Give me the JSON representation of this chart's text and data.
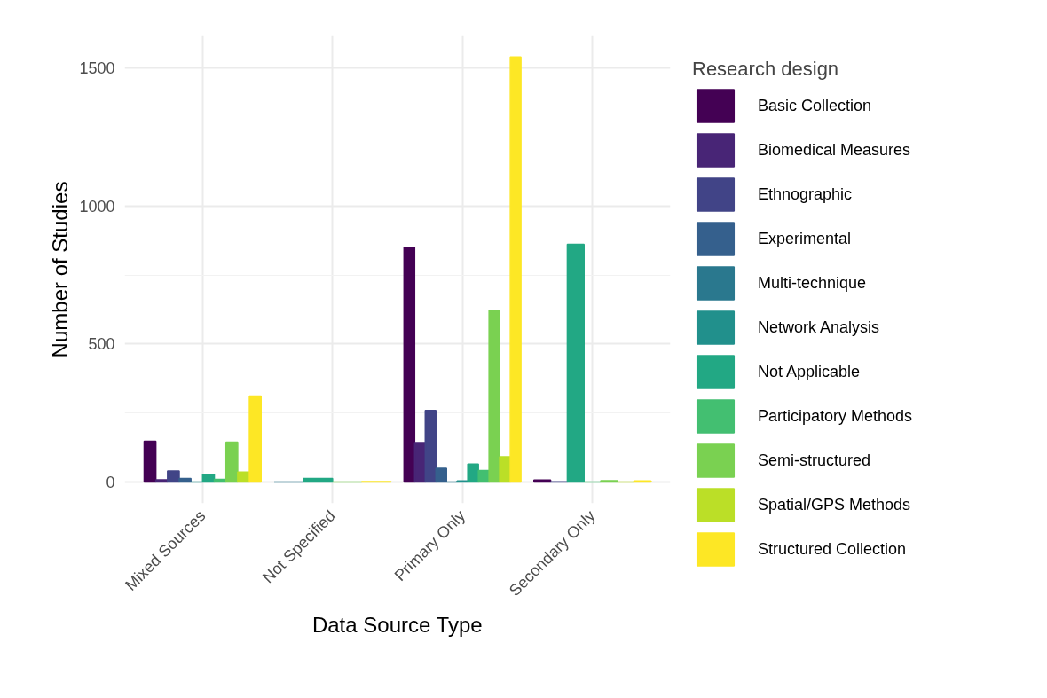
{
  "chart_data": {
    "type": "bar",
    "xlabel": "Data Source Type",
    "ylabel": "Number of Studies",
    "legend_title": "Research design",
    "categories": [
      "Mixed Sources",
      "Not Specified",
      "Primary Only",
      "Secondary Only"
    ],
    "series": [
      {
        "name": "Basic Collection",
        "color": "#440154",
        "values": [
          148,
          null,
          851,
          7
        ]
      },
      {
        "name": "Biomedical Measures",
        "color": "#482576",
        "values": [
          8,
          null,
          143,
          null
        ]
      },
      {
        "name": "Ethnographic",
        "color": "#414487",
        "values": [
          40,
          null,
          260,
          1
        ]
      },
      {
        "name": "Experimental",
        "color": "#35608d",
        "values": [
          13,
          null,
          50,
          null
        ]
      },
      {
        "name": "Multi-technique",
        "color": "#2a788e",
        "values": [
          null,
          0,
          0,
          null
        ]
      },
      {
        "name": "Network Analysis",
        "color": "#21908c",
        "values": [
          0,
          null,
          4,
          null
        ]
      },
      {
        "name": "Not Applicable",
        "color": "#22a884",
        "values": [
          28,
          13,
          65,
          862
        ]
      },
      {
        "name": "Participatory Methods",
        "color": "#43bf71",
        "values": [
          10,
          null,
          42,
          0
        ]
      },
      {
        "name": "Semi-structured",
        "color": "#7ad151",
        "values": [
          145,
          0,
          622,
          5
        ]
      },
      {
        "name": "Spatial/GPS Methods",
        "color": "#bbdf27",
        "values": [
          36,
          null,
          92,
          0
        ]
      },
      {
        "name": "Structured Collection",
        "color": "#fde725",
        "values": [
          312,
          2,
          1541,
          4
        ]
      }
    ],
    "ylim": [
      -77,
      1617
    ],
    "yticks": [
      0,
      500,
      1000,
      1500
    ],
    "grid": true,
    "legend": "right"
  }
}
